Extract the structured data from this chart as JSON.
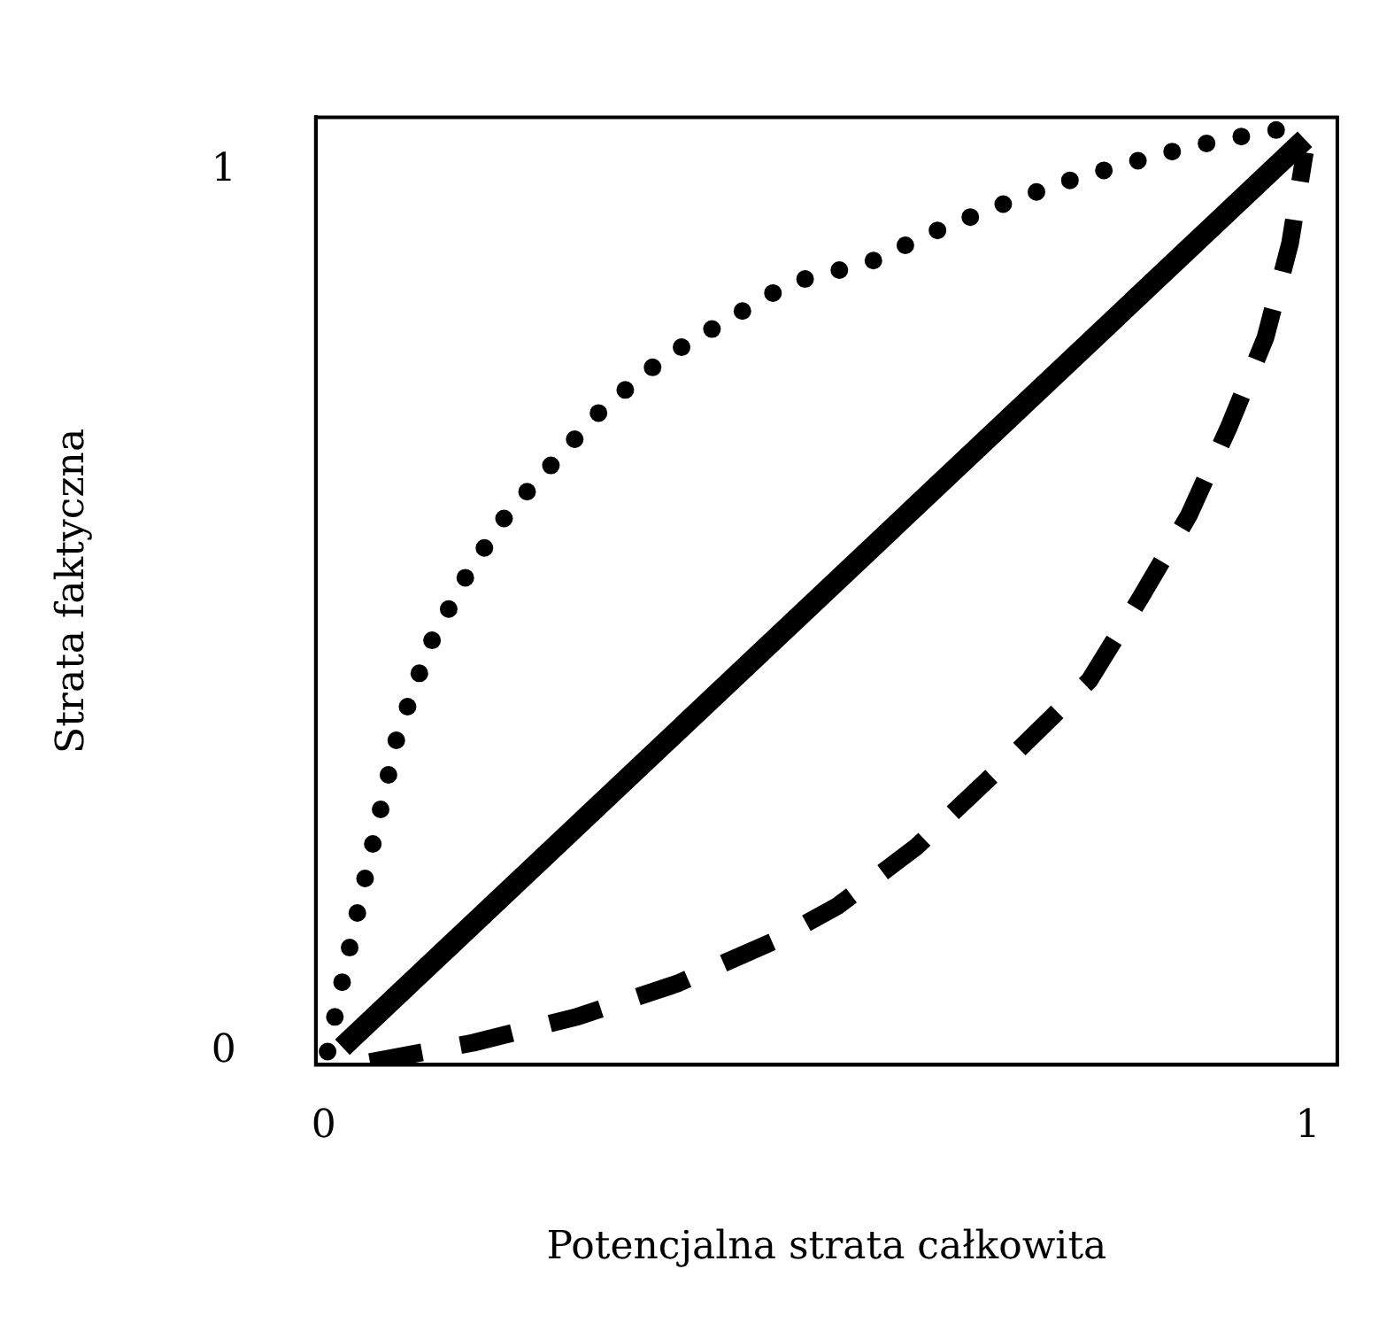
{
  "chart_data": {
    "type": "line",
    "xlabel": "Potencjalna strata całkowita",
    "ylabel": "Strata faktyczna",
    "xlim": [
      -0.008,
      1.03
    ],
    "ylim": [
      -0.015,
      1.06
    ],
    "xticks": [
      0,
      1
    ],
    "yticks": [
      0,
      1
    ],
    "grid": false,
    "legend": false,
    "marker": "none",
    "series": [
      {
        "color": "#000000",
        "line_style": "dotted",
        "x": [
          0.004,
          0.022,
          0.051,
          0.075,
          0.107,
          0.147,
          0.187,
          0.235,
          0.283,
          0.347,
          0.41,
          0.474,
          0.556,
          0.618,
          0.682,
          0.748,
          0.815,
          0.882,
          0.95,
          0.986
        ],
        "values": [
          0.0,
          0.096,
          0.241,
          0.359,
          0.46,
          0.544,
          0.611,
          0.67,
          0.729,
          0.788,
          0.83,
          0.872,
          0.896,
          0.929,
          0.958,
          0.985,
          1.007,
          1.027,
          1.042,
          1.049
        ]
      },
      {
        "color": "#000000",
        "line_style": "solid",
        "x": [
          0.019,
          0.997
        ],
        "values": [
          0.005,
          1.035
        ]
      },
      {
        "color": "#000000",
        "line_style": "dashed",
        "x": [
          0.047,
          0.152,
          0.256,
          0.359,
          0.457,
          0.522,
          0.602,
          0.682,
          0.778,
          0.829,
          0.879,
          0.92,
          0.957,
          0.982,
          0.997
        ],
        "values": [
          -0.012,
          0.01,
          0.039,
          0.077,
          0.125,
          0.165,
          0.232,
          0.316,
          0.421,
          0.513,
          0.608,
          0.709,
          0.81,
          0.917,
          1.02
        ]
      }
    ]
  }
}
